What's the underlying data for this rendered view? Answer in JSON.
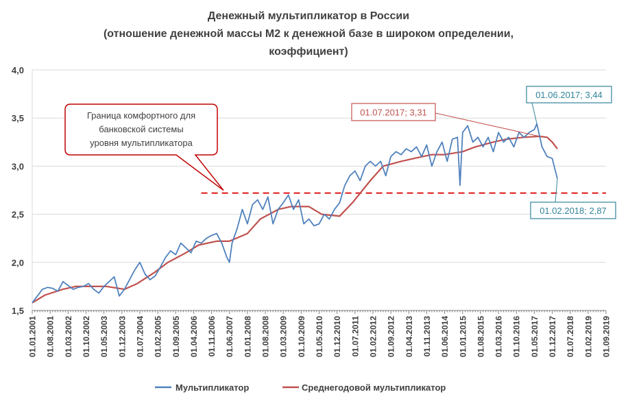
{
  "chart_data": {
    "type": "line",
    "title": [
      "Денежный мультипликатор в России",
      "(отношение денежной массы М2 к денежной базе в широком определении,",
      "коэффициент)"
    ],
    "xlabel": "",
    "ylabel": "",
    "ylim": [
      1.5,
      4.0
    ],
    "yticks": [
      "1,5",
      "2,0",
      "2,5",
      "3,0",
      "3,5",
      "4,0"
    ],
    "ytick_values": [
      1.5,
      2.0,
      2.5,
      3.0,
      3.5,
      4.0
    ],
    "xticks": [
      "01.01.2001",
      "01.08.2001",
      "01.03.2002",
      "01.10.2002",
      "01.05.2003",
      "01.12.2003",
      "01.07.2004",
      "01.02.2005",
      "01.09.2005",
      "01.04.2006",
      "01.11.2006",
      "01.06.2007",
      "01.01.2008",
      "01.08.2008",
      "01.03.2009",
      "01.10.2009",
      "01.05.2010",
      "01.12.2010",
      "01.07.2011",
      "01.02.2012",
      "01.09.2012",
      "01.04.2013",
      "01.11.2013",
      "01.06.2014",
      "01.01.2015",
      "01.08.2015",
      "01.03.2016",
      "01.10.2016",
      "01.05.2017",
      "01.12.2017",
      "01.07.2018",
      "01.02.2019",
      "01.09.2019"
    ],
    "x_start": "2001-01",
    "x_end": "2019-09",
    "grid": "horizontal",
    "legend_position": "bottom",
    "series": [
      {
        "name": "Мультипликатор",
        "color": "#4f81bd",
        "dates": [
          "2001-01",
          "2001-03",
          "2001-05",
          "2001-07",
          "2001-09",
          "2001-11",
          "2002-01",
          "2002-03",
          "2002-05",
          "2002-07",
          "2002-09",
          "2002-11",
          "2003-01",
          "2003-03",
          "2003-05",
          "2003-07",
          "2003-09",
          "2003-11",
          "2004-01",
          "2004-03",
          "2004-05",
          "2004-07",
          "2004-09",
          "2004-11",
          "2005-01",
          "2005-03",
          "2005-05",
          "2005-07",
          "2005-09",
          "2005-11",
          "2006-01",
          "2006-03",
          "2006-05",
          "2006-07",
          "2006-09",
          "2006-11",
          "2007-01",
          "2007-03",
          "2007-05",
          "2007-06",
          "2007-07",
          "2007-09",
          "2007-11",
          "2008-01",
          "2008-03",
          "2008-05",
          "2008-07",
          "2008-09",
          "2008-11",
          "2009-01",
          "2009-03",
          "2009-05",
          "2009-07",
          "2009-09",
          "2009-11",
          "2010-01",
          "2010-03",
          "2010-05",
          "2010-07",
          "2010-09",
          "2010-11",
          "2011-01",
          "2011-03",
          "2011-05",
          "2011-07",
          "2011-09",
          "2011-11",
          "2012-01",
          "2012-03",
          "2012-05",
          "2012-07",
          "2012-09",
          "2012-11",
          "2013-01",
          "2013-03",
          "2013-05",
          "2013-07",
          "2013-09",
          "2013-11",
          "2014-01",
          "2014-03",
          "2014-05",
          "2014-07",
          "2014-09",
          "2014-11",
          "2014-12",
          "2015-01",
          "2015-03",
          "2015-05",
          "2015-07",
          "2015-09",
          "2015-11",
          "2016-01",
          "2016-03",
          "2016-05",
          "2016-07",
          "2016-09",
          "2016-11",
          "2017-01",
          "2017-03",
          "2017-05",
          "2017-06",
          "2017-08",
          "2017-10",
          "2017-12",
          "2018-02"
        ],
        "values": [
          1.58,
          1.65,
          1.72,
          1.74,
          1.73,
          1.7,
          1.8,
          1.76,
          1.72,
          1.74,
          1.75,
          1.78,
          1.72,
          1.68,
          1.75,
          1.8,
          1.85,
          1.65,
          1.72,
          1.82,
          1.92,
          2.0,
          1.88,
          1.82,
          1.86,
          1.95,
          2.05,
          2.12,
          2.08,
          2.2,
          2.15,
          2.1,
          2.22,
          2.2,
          2.25,
          2.28,
          2.3,
          2.2,
          2.05,
          2.0,
          2.2,
          2.35,
          2.55,
          2.4,
          2.6,
          2.65,
          2.55,
          2.68,
          2.4,
          2.55,
          2.62,
          2.7,
          2.55,
          2.65,
          2.4,
          2.45,
          2.38,
          2.4,
          2.5,
          2.45,
          2.55,
          2.62,
          2.8,
          2.9,
          2.95,
          2.85,
          3.0,
          3.05,
          3.0,
          3.05,
          2.9,
          3.1,
          3.15,
          3.12,
          3.18,
          3.15,
          3.2,
          3.1,
          3.22,
          3.0,
          3.15,
          3.25,
          3.05,
          3.28,
          3.3,
          2.8,
          3.35,
          3.42,
          3.25,
          3.3,
          3.2,
          3.3,
          3.15,
          3.35,
          3.25,
          3.3,
          3.2,
          3.35,
          3.3,
          3.35,
          3.38,
          3.44,
          3.2,
          3.1,
          3.08,
          2.87
        ]
      },
      {
        "name": "Среднегодовой мультипликатор",
        "color": "#c0504d",
        "dates": [
          "2001-01",
          "2001-06",
          "2002-01",
          "2002-06",
          "2003-01",
          "2003-06",
          "2004-01",
          "2004-06",
          "2005-01",
          "2005-06",
          "2006-01",
          "2006-06",
          "2007-01",
          "2007-06",
          "2008-01",
          "2008-06",
          "2009-01",
          "2009-06",
          "2010-01",
          "2010-06",
          "2011-01",
          "2011-06",
          "2012-01",
          "2012-06",
          "2013-01",
          "2013-06",
          "2014-01",
          "2014-06",
          "2015-01",
          "2015-06",
          "2016-01",
          "2016-06",
          "2017-01",
          "2017-07",
          "2017-10",
          "2017-12",
          "2018-02"
        ],
        "values": [
          1.58,
          1.66,
          1.72,
          1.75,
          1.75,
          1.75,
          1.72,
          1.78,
          1.9,
          2.0,
          2.1,
          2.18,
          2.22,
          2.22,
          2.3,
          2.45,
          2.55,
          2.58,
          2.58,
          2.5,
          2.48,
          2.62,
          2.85,
          3.0,
          3.05,
          3.08,
          3.12,
          3.12,
          3.15,
          3.2,
          3.25,
          3.28,
          3.3,
          3.31,
          3.3,
          3.25,
          3.18
        ]
      }
    ],
    "reference_line": {
      "value": 2.72,
      "color": "#e02020",
      "style": "dashed",
      "from": "2006-07",
      "to": "2019-09"
    },
    "annotations": [
      {
        "id": "comfort",
        "lines": [
          "Граница комфортного для",
          "банковской системы",
          "уровня мультипликатора"
        ],
        "color": "#c00000",
        "text_color": "#404040"
      },
      {
        "id": "peak-avg",
        "text": "01.07.2017; 3,31",
        "color": "#c0504d",
        "x": "2017-07",
        "y": 3.31
      },
      {
        "id": "peak-mult",
        "text": "01.06.2017; 3,44",
        "color": "#31849b",
        "x": "2017-06",
        "y": 3.44
      },
      {
        "id": "last-mult",
        "text": "01.02.2018; 2,87",
        "color": "#31849b",
        "x": "2018-02",
        "y": 2.87
      }
    ]
  }
}
